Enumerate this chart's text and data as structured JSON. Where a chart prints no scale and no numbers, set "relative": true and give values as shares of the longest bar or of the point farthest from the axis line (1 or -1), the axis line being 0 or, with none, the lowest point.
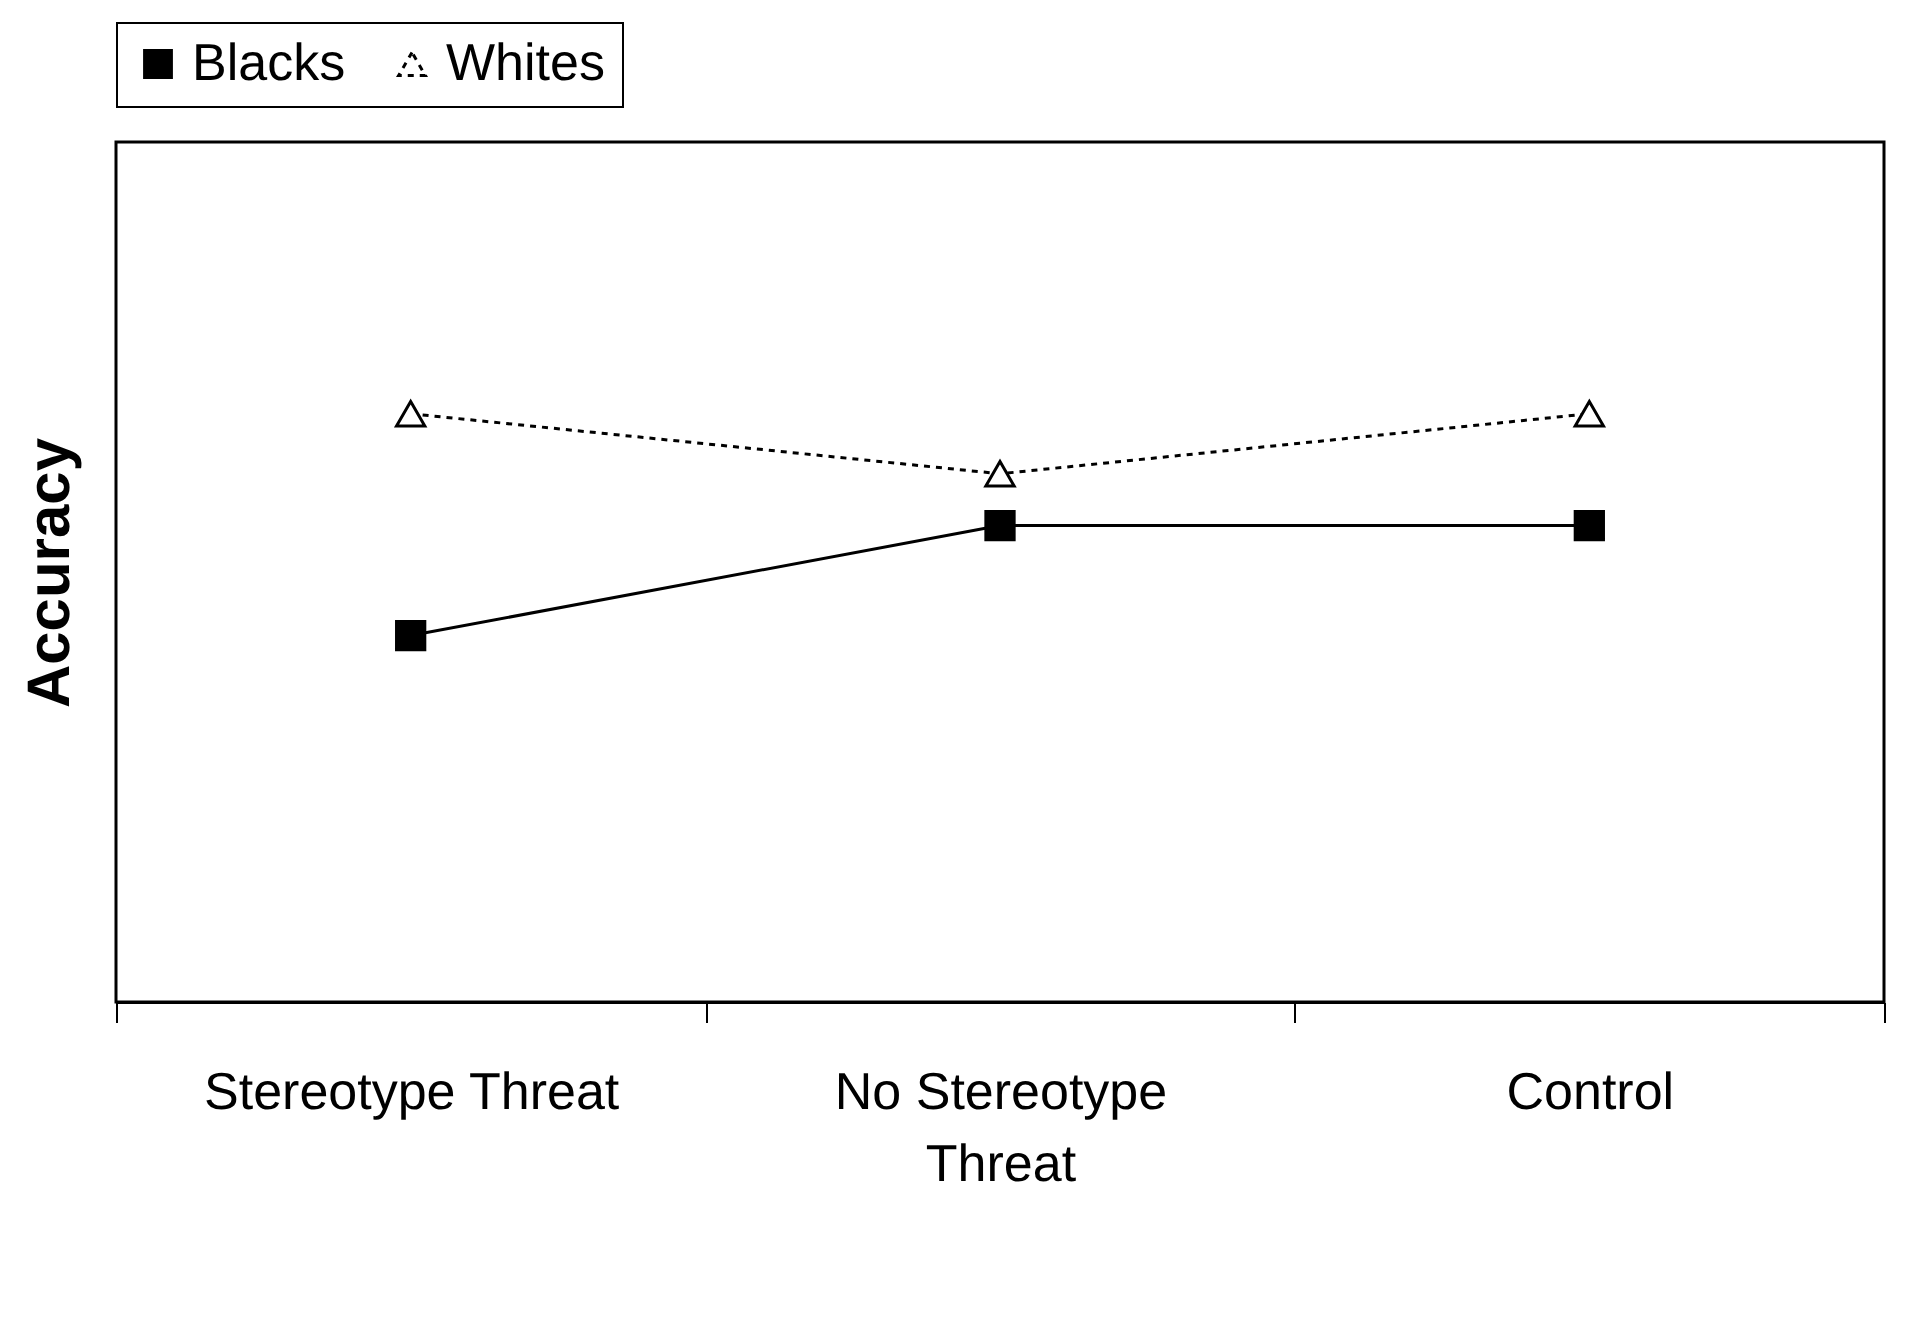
{
  "chart_data": {
    "type": "line",
    "ylabel": "Accuracy",
    "relative": true,
    "legend": "top",
    "categories": [
      "Stereotype Threat",
      "No Stereotype Threat",
      "Control"
    ],
    "series": [
      {
        "name": "Blacks",
        "color": "#000000",
        "marker": "square",
        "line_style": "solid",
        "values": [
          0.623,
          0.81,
          0.81
        ]
      },
      {
        "name": "Whites",
        "color": "#000000",
        "marker": "triangle",
        "line_style": "dotted",
        "values": [
          1,
          0.898,
          1
        ]
      }
    ]
  }
}
